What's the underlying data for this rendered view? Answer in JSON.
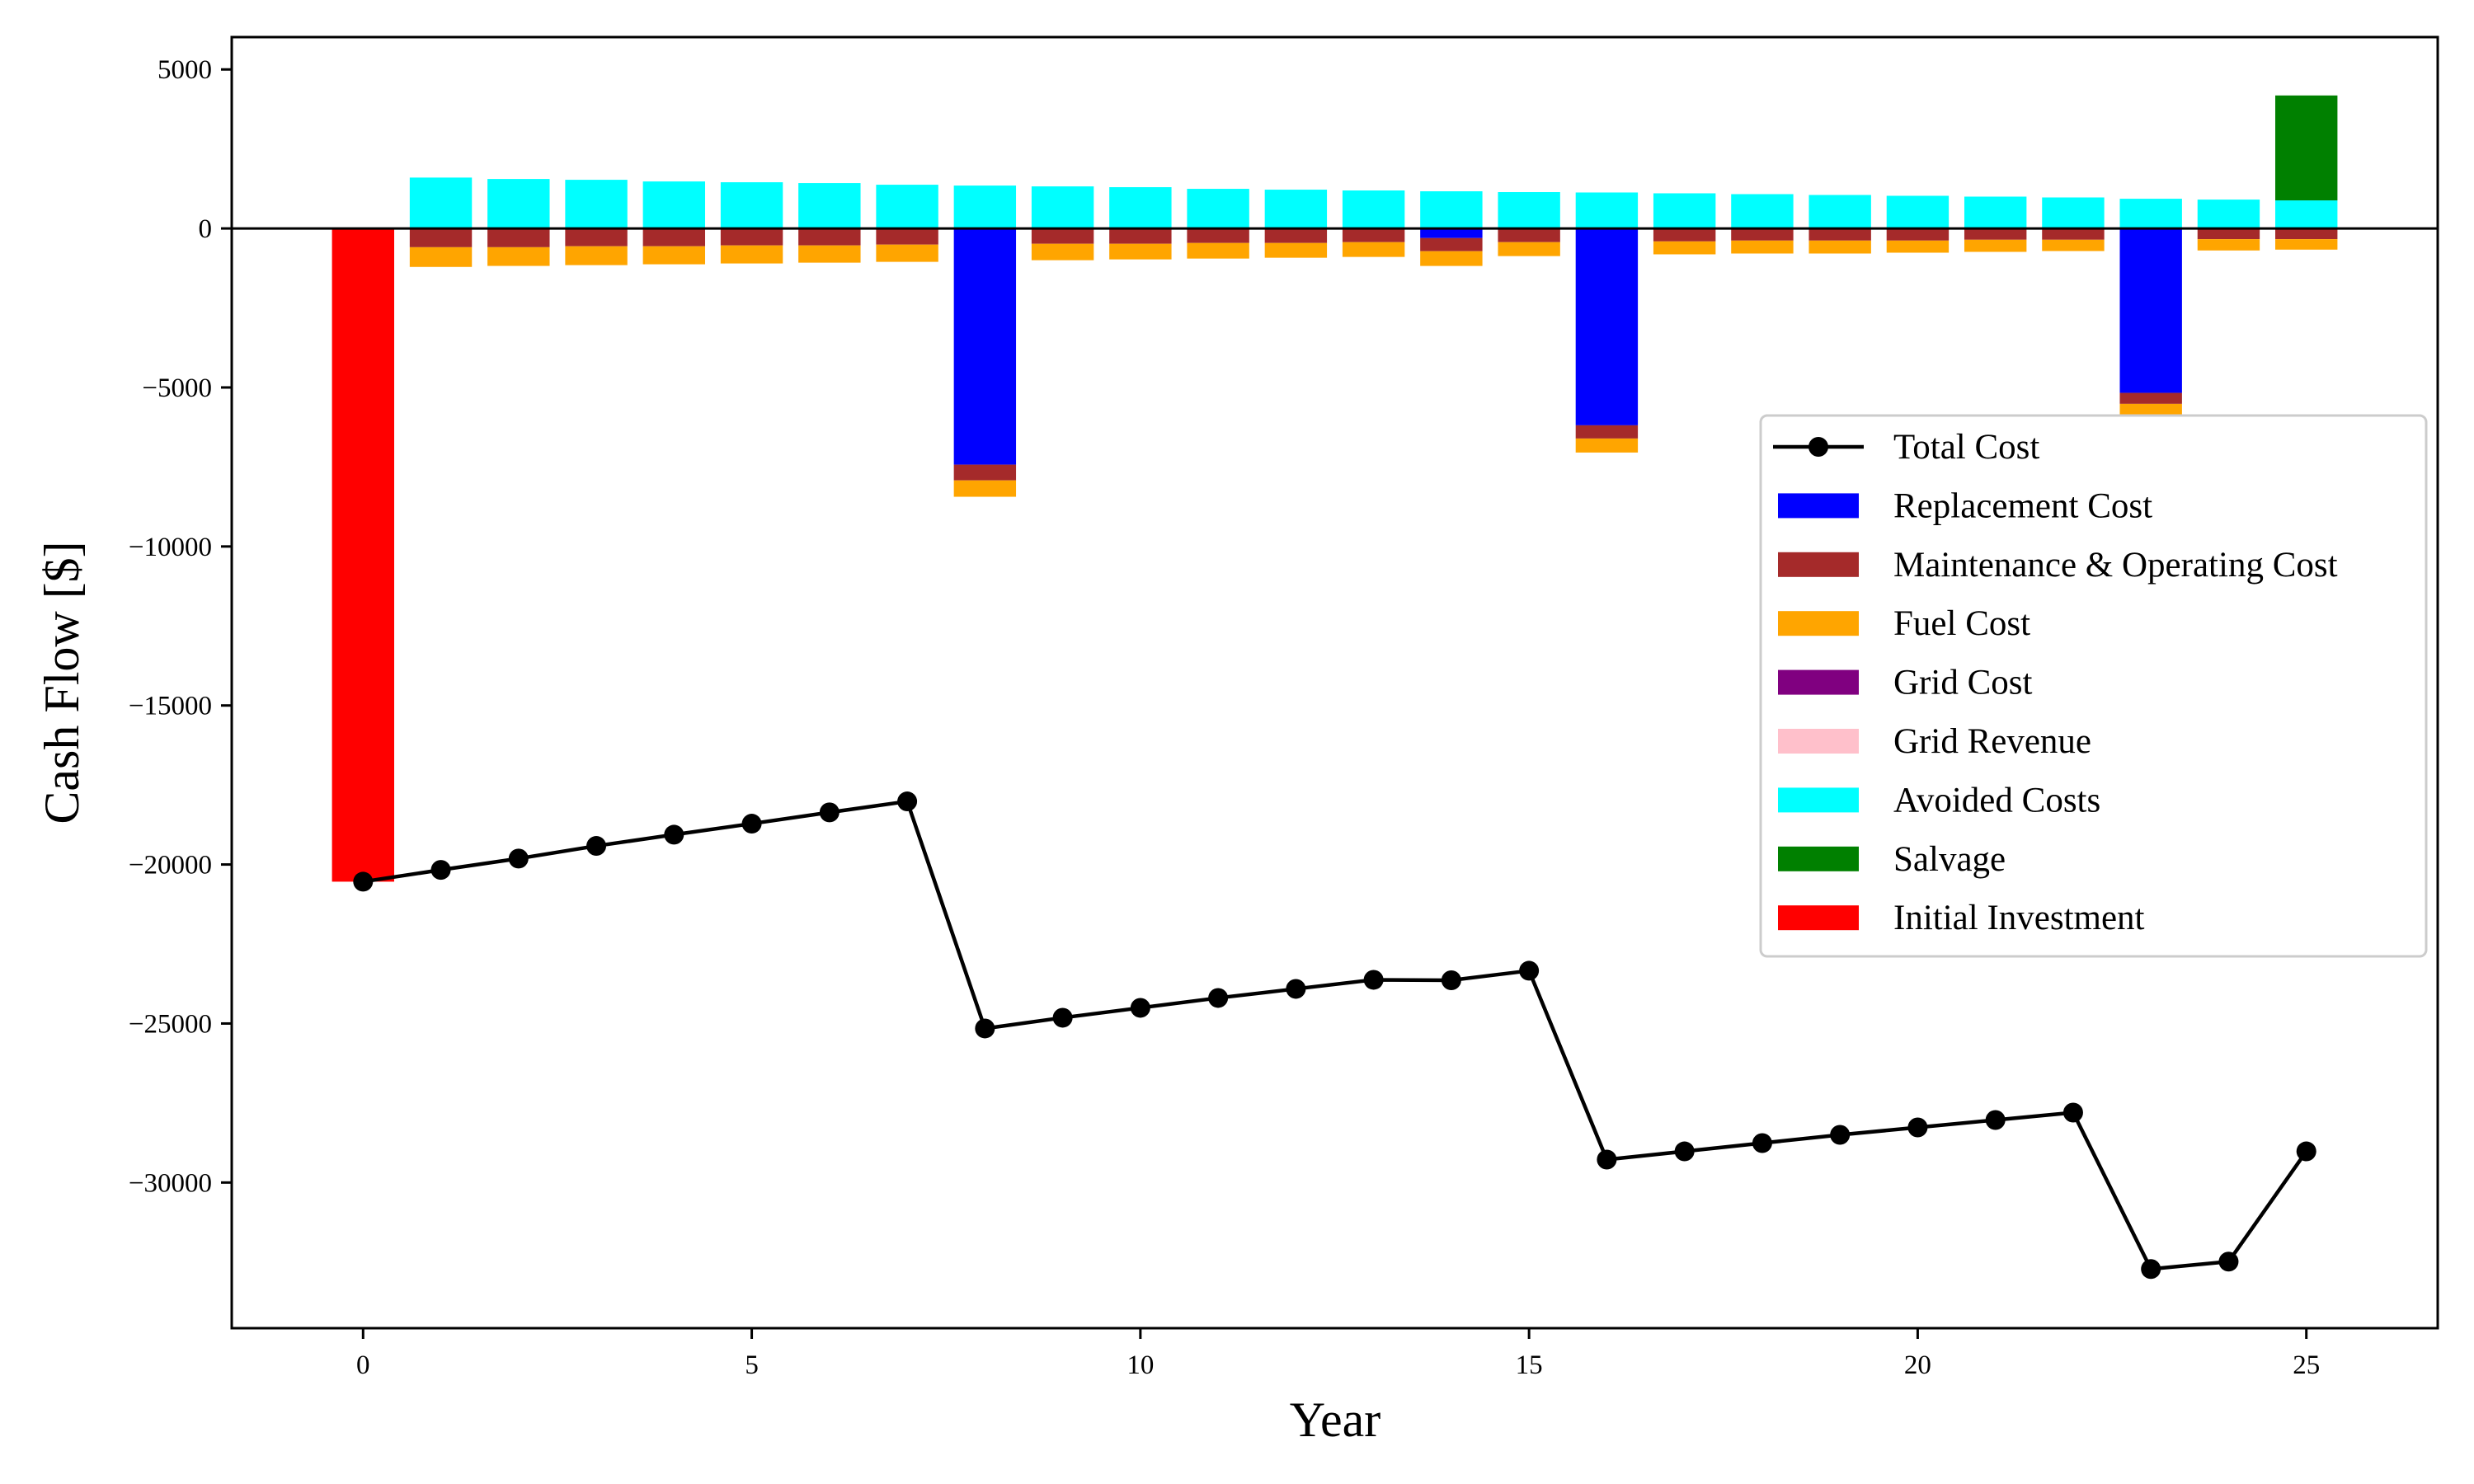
{
  "chart_data": {
    "type": "bar",
    "stacked": true,
    "title": "",
    "xlabel": "Year",
    "ylabel": "Cash Flow [$]",
    "xlim": [
      -1.69,
      26.69
    ],
    "ylim": [
      -34580,
      6017
    ],
    "grid": false,
    "legend_position": "center-right",
    "x": [
      0,
      1,
      2,
      3,
      4,
      5,
      6,
      7,
      8,
      9,
      10,
      11,
      12,
      13,
      14,
      15,
      16,
      17,
      18,
      19,
      20,
      21,
      22,
      23,
      24,
      25
    ],
    "x_ticks": [
      0,
      5,
      10,
      15,
      20,
      25
    ],
    "x_tick_labels": [
      "0",
      "5",
      "10",
      "15",
      "20",
      "25"
    ],
    "y_ticks": [
      5000,
      0,
      -5000,
      -10000,
      -15000,
      -20000,
      -25000,
      -30000
    ],
    "y_tick_labels": [
      "5000",
      "0",
      "−5000",
      "−10000",
      "−15000",
      "−20000",
      "−25000",
      "−30000"
    ],
    "series": [
      {
        "name": "Total Cost",
        "kind": "line",
        "color": "#000000",
        "values": [
          -20540,
          -20170,
          -19813,
          -19416,
          -19062,
          -18716,
          -18361,
          -18016,
          -25156,
          -24818,
          -24507,
          -24196,
          -23911,
          -23626,
          -23640,
          -23340,
          -29279,
          -29020,
          -28760,
          -28501,
          -28268,
          -28034,
          -27801,
          -32720,
          -32487,
          -29020
        ]
      },
      {
        "name": "Replacement Cost",
        "kind": "bar",
        "color": "#0000ff",
        "values": [
          0,
          0,
          0,
          0,
          0,
          0,
          0,
          0,
          -7427,
          0,
          0,
          0,
          0,
          0,
          -302,
          0,
          -6190,
          0,
          0,
          0,
          0,
          0,
          0,
          -5171,
          0,
          0
        ]
      },
      {
        "name": "Maintenance & Operating Cost",
        "kind": "bar",
        "color": "#a52a2a",
        "values": [
          0,
          -590,
          -590,
          -560,
          -560,
          -534,
          -534,
          -508,
          -495,
          -482,
          -482,
          -457,
          -457,
          -431,
          -413,
          -431,
          -415,
          -407,
          -381,
          -381,
          -381,
          -355,
          -355,
          -345,
          -337,
          -337
        ]
      },
      {
        "name": "Fuel Cost",
        "kind": "bar",
        "color": "#ffa500",
        "values": [
          0,
          -620,
          -588,
          -593,
          -567,
          -567,
          -542,
          -542,
          -515,
          -516,
          -491,
          -490,
          -464,
          -464,
          -464,
          -438,
          -441,
          -407,
          -407,
          -407,
          -381,
          -381,
          -355,
          -352,
          -355,
          -329
        ]
      },
      {
        "name": "Grid Cost",
        "kind": "bar",
        "color": "#800080",
        "values": [
          0,
          0,
          0,
          0,
          0,
          0,
          0,
          0,
          0,
          0,
          0,
          0,
          0,
          0,
          0,
          0,
          0,
          0,
          0,
          0,
          0,
          0,
          0,
          0,
          0,
          0
        ]
      },
      {
        "name": "Grid Revenue",
        "kind": "bar",
        "color": "#ffc0cb",
        "values": [
          0,
          0,
          0,
          0,
          0,
          0,
          0,
          0,
          0,
          0,
          0,
          0,
          0,
          0,
          0,
          0,
          0,
          0,
          0,
          0,
          0,
          0,
          0,
          0,
          0,
          0
        ]
      },
      {
        "name": "Avoided Costs",
        "kind": "bar",
        "color": "#00ffff",
        "values": [
          0,
          1600,
          1556,
          1530,
          1478,
          1453,
          1427,
          1375,
          1349,
          1323,
          1298,
          1246,
          1220,
          1195,
          1169,
          1143,
          1131,
          1105,
          1079,
          1053,
          1027,
          1001,
          975,
          934,
          908,
          882
        ]
      },
      {
        "name": "Salvage",
        "kind": "bar",
        "color": "#008000",
        "values": [
          0,
          0,
          0,
          0,
          0,
          0,
          0,
          0,
          0,
          0,
          0,
          0,
          0,
          0,
          0,
          0,
          0,
          0,
          0,
          0,
          0,
          0,
          0,
          0,
          0,
          3300
        ]
      },
      {
        "name": "Initial Investment",
        "kind": "bar",
        "color": "#ff0000",
        "values": [
          -20540,
          0,
          0,
          0,
          0,
          0,
          0,
          0,
          0,
          0,
          0,
          0,
          0,
          0,
          0,
          0,
          0,
          0,
          0,
          0,
          0,
          0,
          0,
          0,
          0,
          0
        ]
      }
    ]
  }
}
